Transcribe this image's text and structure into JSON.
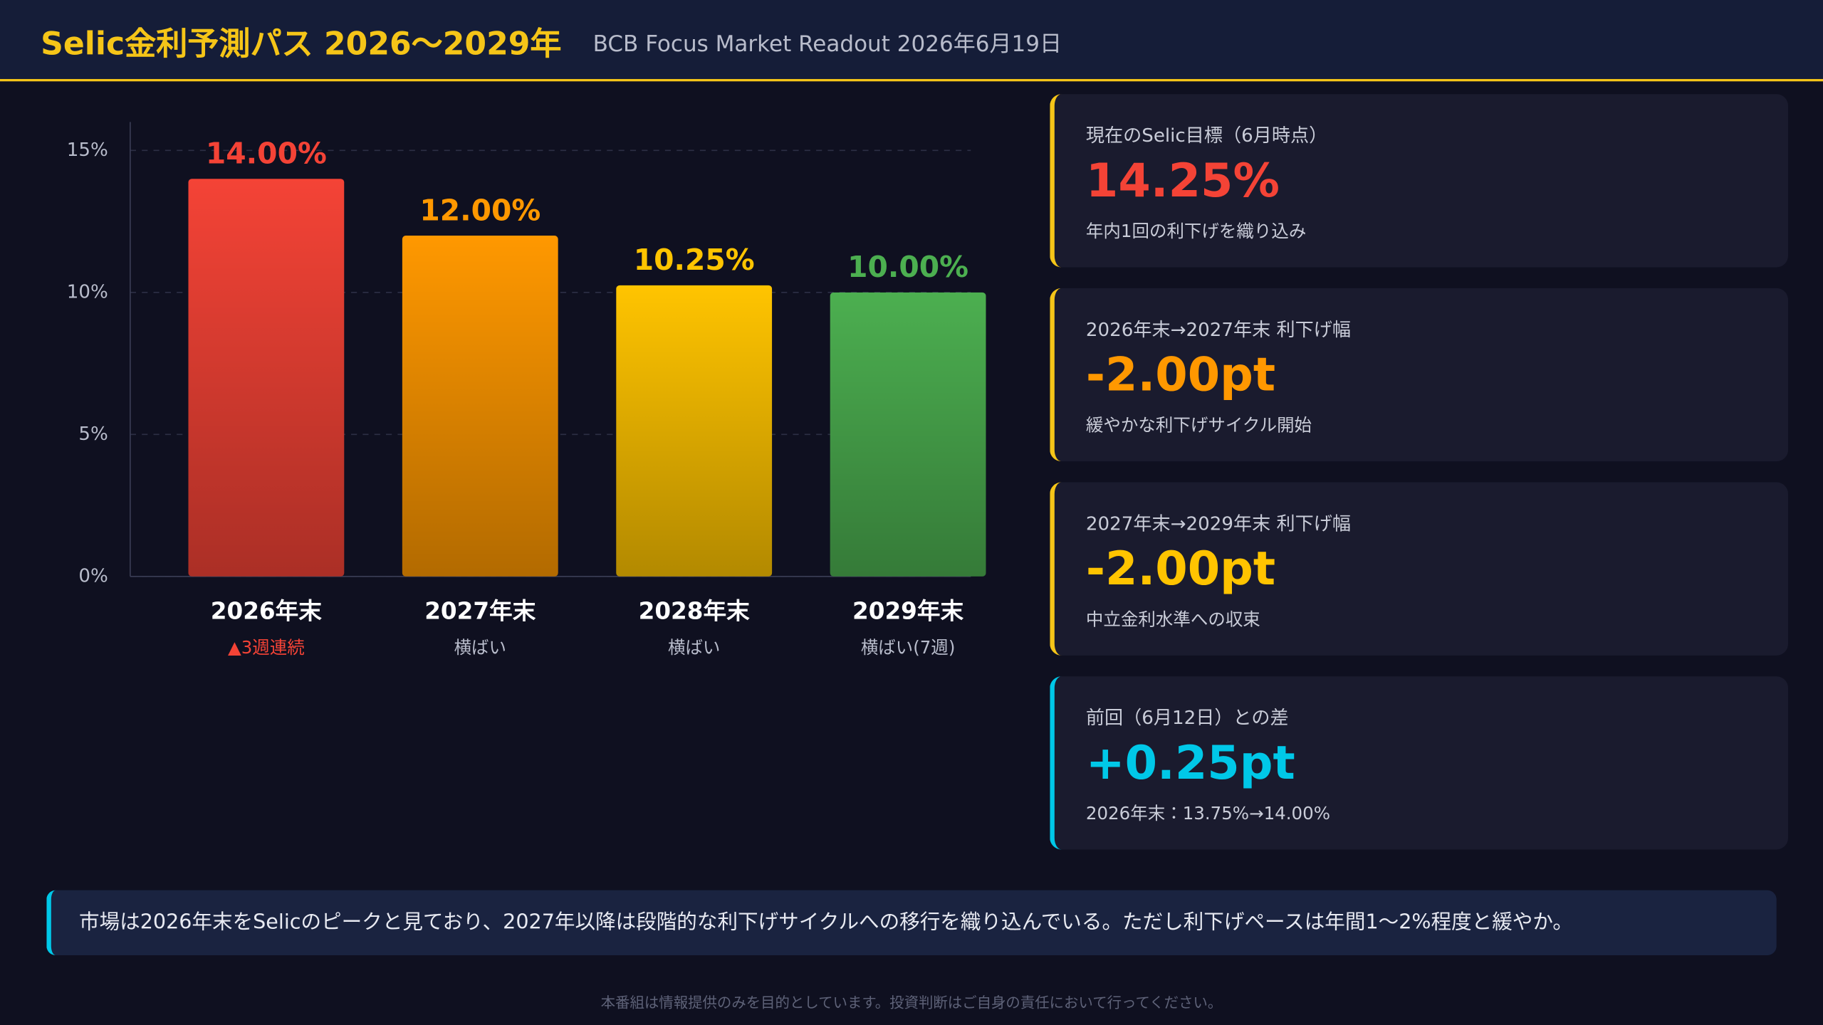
{
  "header": {
    "title": "Selic金利予測パス 2026〜2029年",
    "subtitle": "BCB Focus Market Readout 2026年6月19日"
  },
  "chart_data": {
    "type": "bar",
    "categories": [
      "2026年末",
      "2027年末",
      "2028年末",
      "2029年末"
    ],
    "category_notes": [
      "▲3週連続",
      "横ばい",
      "横ばい",
      "横ばい(7週)"
    ],
    "category_note_colors": [
      "#f44336",
      "#b8bccb",
      "#b8bccb",
      "#b8bccb"
    ],
    "values": [
      14,
      12,
      10.25,
      10
    ],
    "value_labels": [
      "14.00%",
      "12.00%",
      "10.25%",
      "10.00%"
    ],
    "colors": [
      "#f44336",
      "#ff9800",
      "#ffc400",
      "#4caf50"
    ],
    "ylim": [
      0,
      16
    ],
    "yticks": [
      {
        "value": 0,
        "label": "0%"
      },
      {
        "value": 5,
        "label": "5%"
      },
      {
        "value": 10,
        "label": "10%"
      },
      {
        "value": 15,
        "label": "15%"
      }
    ],
    "grid": true
  },
  "cards": [
    {
      "label": "現在のSelic目標（6月時点）",
      "value": "14.25%",
      "note": "年内1回の利下げを織り込み",
      "color": "#f44336",
      "accent": "#f5c518"
    },
    {
      "label": "2026年末→2027年末 利下げ幅",
      "value": "-2.00pt",
      "note": "緩やかな利下げサイクル開始",
      "color": "#ff9800",
      "accent": "#f5c518"
    },
    {
      "label": "2027年末→2029年末 利下げ幅",
      "value": "-2.00pt",
      "note": "中立金利水準への収束",
      "color": "#ffc400",
      "accent": "#f5c518"
    },
    {
      "label": "前回（6月12日）との差",
      "value": "+0.25pt",
      "note": "2026年末：13.75%→14.00%",
      "color": "#00c8e8",
      "accent": "#00c8e8"
    }
  ],
  "summary": "市場は2026年末をSelicのピークと見ており、2027年以降は段階的な利下げサイクルへの移行を織り込んでいる。ただし利下げペースは年間1〜2%程度と緩やか。",
  "disclaimer": "本番組は情報提供のみを目的としています。投資判断はご自身の責任において行ってください。"
}
